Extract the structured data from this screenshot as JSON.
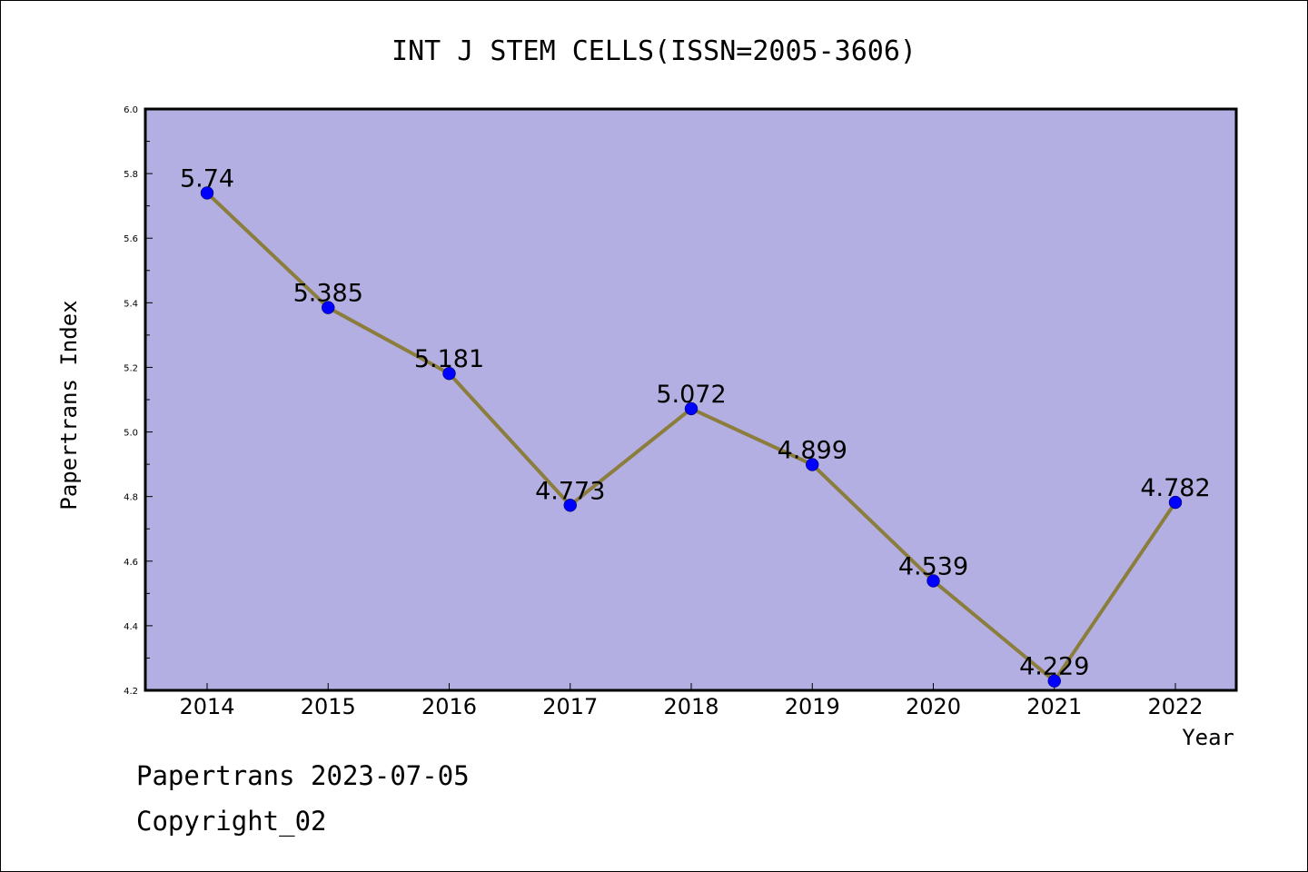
{
  "chart_data": {
    "type": "line",
    "title": "INT J STEM CELLS(ISSN=2005-3606)",
    "xlabel": "Year",
    "ylabel": "Papertrans Index",
    "categories": [
      "2014",
      "2015",
      "2016",
      "2017",
      "2018",
      "2019",
      "2020",
      "2021",
      "2022"
    ],
    "series": [
      {
        "values": [
          5.74,
          5.385,
          5.181,
          4.773,
          5.072,
          4.899,
          4.539,
          4.229,
          4.782
        ]
      }
    ],
    "data_labels": [
      "5.74",
      "5.385",
      "5.181",
      "4.773",
      "5.072",
      "4.899",
      "4.539",
      "4.229",
      "4.782"
    ],
    "ylim": [
      4.2,
      6.0
    ],
    "yticks": [
      "4.2",
      "4.4",
      "4.6",
      "4.8",
      "5.0",
      "5.2",
      "5.4",
      "5.6",
      "5.8",
      "6.0"
    ],
    "grid": false,
    "colors": {
      "plot_background": "#b4afe2",
      "line": "#8b7d3c",
      "marker": "#0000ff"
    }
  },
  "footer": {
    "line1": "Papertrans 2023-07-05",
    "line2": "Copyright_02"
  }
}
